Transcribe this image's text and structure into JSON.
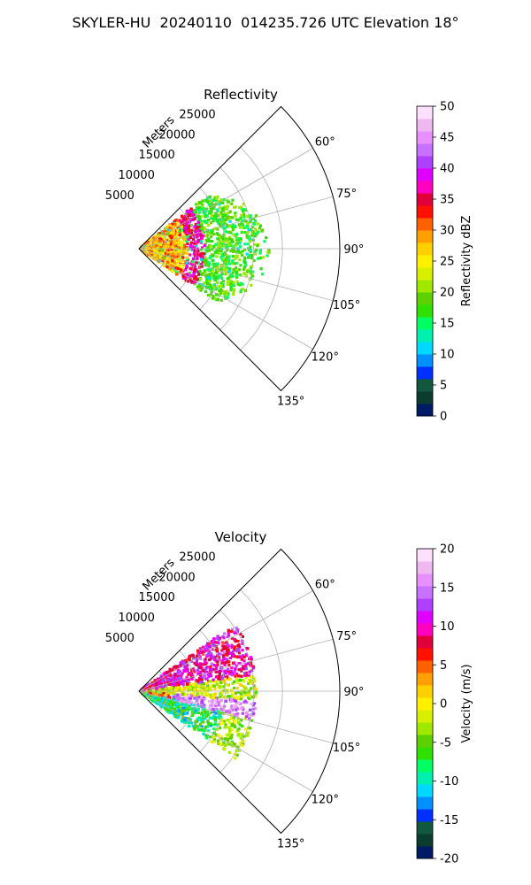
{
  "suptitle": "SKYLER-HU  20240110  014235.726 UTC Elevation 18°",
  "chart_data": [
    {
      "type": "heatmap",
      "subtype": "polar-sector",
      "title": "Reflectivity",
      "r_label": "Meters",
      "r_ticks": [
        5000,
        10000,
        15000,
        20000,
        25000
      ],
      "r_range": [
        0,
        35000
      ],
      "theta_range_deg": [
        45,
        135
      ],
      "theta_ticks": [
        "60°",
        "75°",
        "90°",
        "105°",
        "120°",
        "135°"
      ],
      "grid": true,
      "colorbar": {
        "label": "Reflectivity dBZ",
        "range": [
          0,
          50
        ],
        "ticks": [
          0,
          5,
          10,
          15,
          20,
          25,
          30,
          35,
          40,
          45,
          50
        ],
        "colors": [
          "#001a66",
          "#0a3d2e",
          "#12583f",
          "#0030ff",
          "#0090ff",
          "#00d8ff",
          "#00f0b0",
          "#00ff60",
          "#30e000",
          "#5cd000",
          "#a0e800",
          "#d8f000",
          "#fff000",
          "#ffd000",
          "#ffa000",
          "#ff6000",
          "#ff1000",
          "#e0003a",
          "#ff00c0",
          "#e000ff",
          "#b040ff",
          "#c870ff",
          "#e890ff",
          "#f0b8f0",
          "#fce0fc"
        ]
      },
      "features": [
        {
          "desc": "strong echo arc",
          "r_min": 8500,
          "r_max": 11500,
          "theta": [
            50,
            125
          ],
          "value_dbz": 37
        },
        {
          "desc": "near-field mixed echoes",
          "r_min": 0,
          "r_max": 9000,
          "theta": [
            50,
            125
          ],
          "value_dbz": 28
        },
        {
          "desc": "outer weak echoes",
          "r_min": 11500,
          "r_max": 22000,
          "theta": [
            60,
            118
          ],
          "value_dbz": 18
        }
      ]
    },
    {
      "type": "heatmap",
      "subtype": "polar-sector",
      "title": "Velocity",
      "r_label": "Meters",
      "r_ticks": [
        5000,
        10000,
        15000,
        20000,
        25000
      ],
      "r_range": [
        0,
        35000
      ],
      "theta_range_deg": [
        45,
        135
      ],
      "theta_ticks": [
        "60°",
        "75°",
        "90°",
        "105°",
        "120°",
        "135°"
      ],
      "grid": true,
      "colorbar": {
        "label": "Velocity (m/s)",
        "range": [
          -20,
          20
        ],
        "ticks": [
          -20,
          -15,
          -10,
          -5,
          0,
          5,
          10,
          15,
          20
        ],
        "colors": [
          "#001a66",
          "#0a3d2e",
          "#12583f",
          "#0030ff",
          "#0090ff",
          "#00d8ff",
          "#00f0b0",
          "#00ff60",
          "#30e000",
          "#5cd000",
          "#a0e800",
          "#d8f000",
          "#fff000",
          "#ffd000",
          "#ffa000",
          "#ff6000",
          "#ff1000",
          "#e0003a",
          "#ff00c0",
          "#e000ff",
          "#b040ff",
          "#c870ff",
          "#e890ff",
          "#f0b8f0",
          "#fce0fc"
        ]
      },
      "features": [
        {
          "desc": "outbound band",
          "r_min": 2000,
          "r_max": 21000,
          "theta": [
            58,
            82
          ],
          "value_ms": 11
        },
        {
          "desc": "near-zero band",
          "r_min": 0,
          "r_max": 20000,
          "theta": [
            82,
            95
          ],
          "value_ms": -3
        },
        {
          "desc": "magenta core",
          "r_min": 6000,
          "r_max": 21000,
          "theta": [
            95,
            104
          ],
          "value_ms": 15
        },
        {
          "desc": "inbound band",
          "r_min": 0,
          "r_max": 19000,
          "theta": [
            104,
            125
          ],
          "value_ms": -10
        }
      ]
    }
  ]
}
